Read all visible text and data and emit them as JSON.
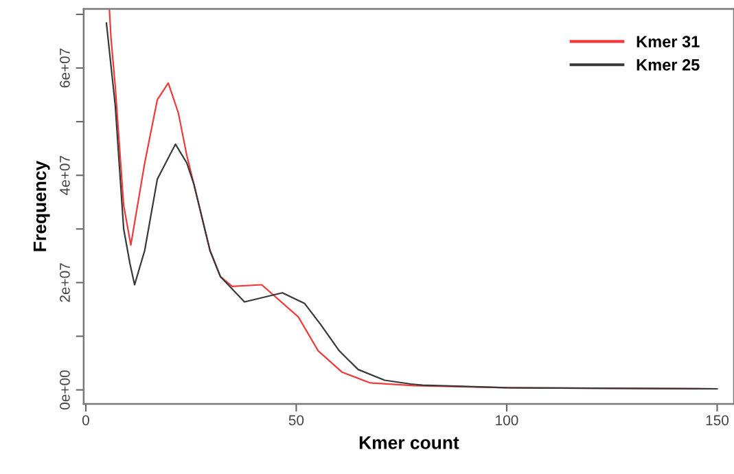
{
  "chart_data": {
    "type": "line",
    "xlabel": "Kmer count",
    "ylabel": "Frequency",
    "xlim": [
      -0.5,
      154
    ],
    "ylim": [
      -2600000,
      71000000
    ],
    "xticks": [
      0,
      50,
      100,
      150
    ],
    "yticks": [
      {
        "value": 0,
        "label": "0e+00"
      },
      {
        "value": 10000000,
        "label": null
      },
      {
        "value": 20000000,
        "label": "2e+07"
      },
      {
        "value": 30000000,
        "label": null
      },
      {
        "value": 40000000,
        "label": "4e+07"
      },
      {
        "value": 50000000,
        "label": null
      },
      {
        "value": 60000000,
        "label": "6e+07"
      },
      {
        "value": 70000000,
        "label": null
      }
    ],
    "grid": false,
    "legend": "top right",
    "line_style": "solid",
    "marker": "none",
    "series": [
      {
        "name": "Kmer 31",
        "color": "#f03a3a",
        "x": [
          5.6,
          6,
          7,
          9,
          10.7,
          14,
          17,
          19.6,
          22,
          24,
          25.7,
          29.5,
          32,
          34.8,
          41.8,
          50.5,
          55.2,
          60.9,
          67.6,
          78,
          100,
          150
        ],
        "values": [
          71000000,
          65500000,
          56600000,
          34400000,
          27000000,
          42300000,
          54100000,
          57200000,
          51600000,
          43700000,
          38300000,
          26000000,
          21100000,
          19300000,
          19600000,
          13600000,
          7300000,
          3300000,
          1300000,
          800000,
          400000,
          200000
        ]
      },
      {
        "name": "Kmer 25",
        "color": "#383838",
        "x": [
          4.9,
          7,
          9,
          10.5,
          11.6,
          14,
          17,
          21.3,
          24,
          25.7,
          29.5,
          32,
          37.7,
          46.7,
          52,
          55.8,
          60.2,
          64.7,
          71,
          77.2,
          80,
          100,
          150
        ],
        "values": [
          68400000,
          53000000,
          30000000,
          23500000,
          19600000,
          26000000,
          39300000,
          45800000,
          42300000,
          38300000,
          26000000,
          21100000,
          16400000,
          18100000,
          16100000,
          12200000,
          7300000,
          3800000,
          1800000,
          1100000,
          900000,
          400000,
          200000
        ]
      }
    ]
  }
}
